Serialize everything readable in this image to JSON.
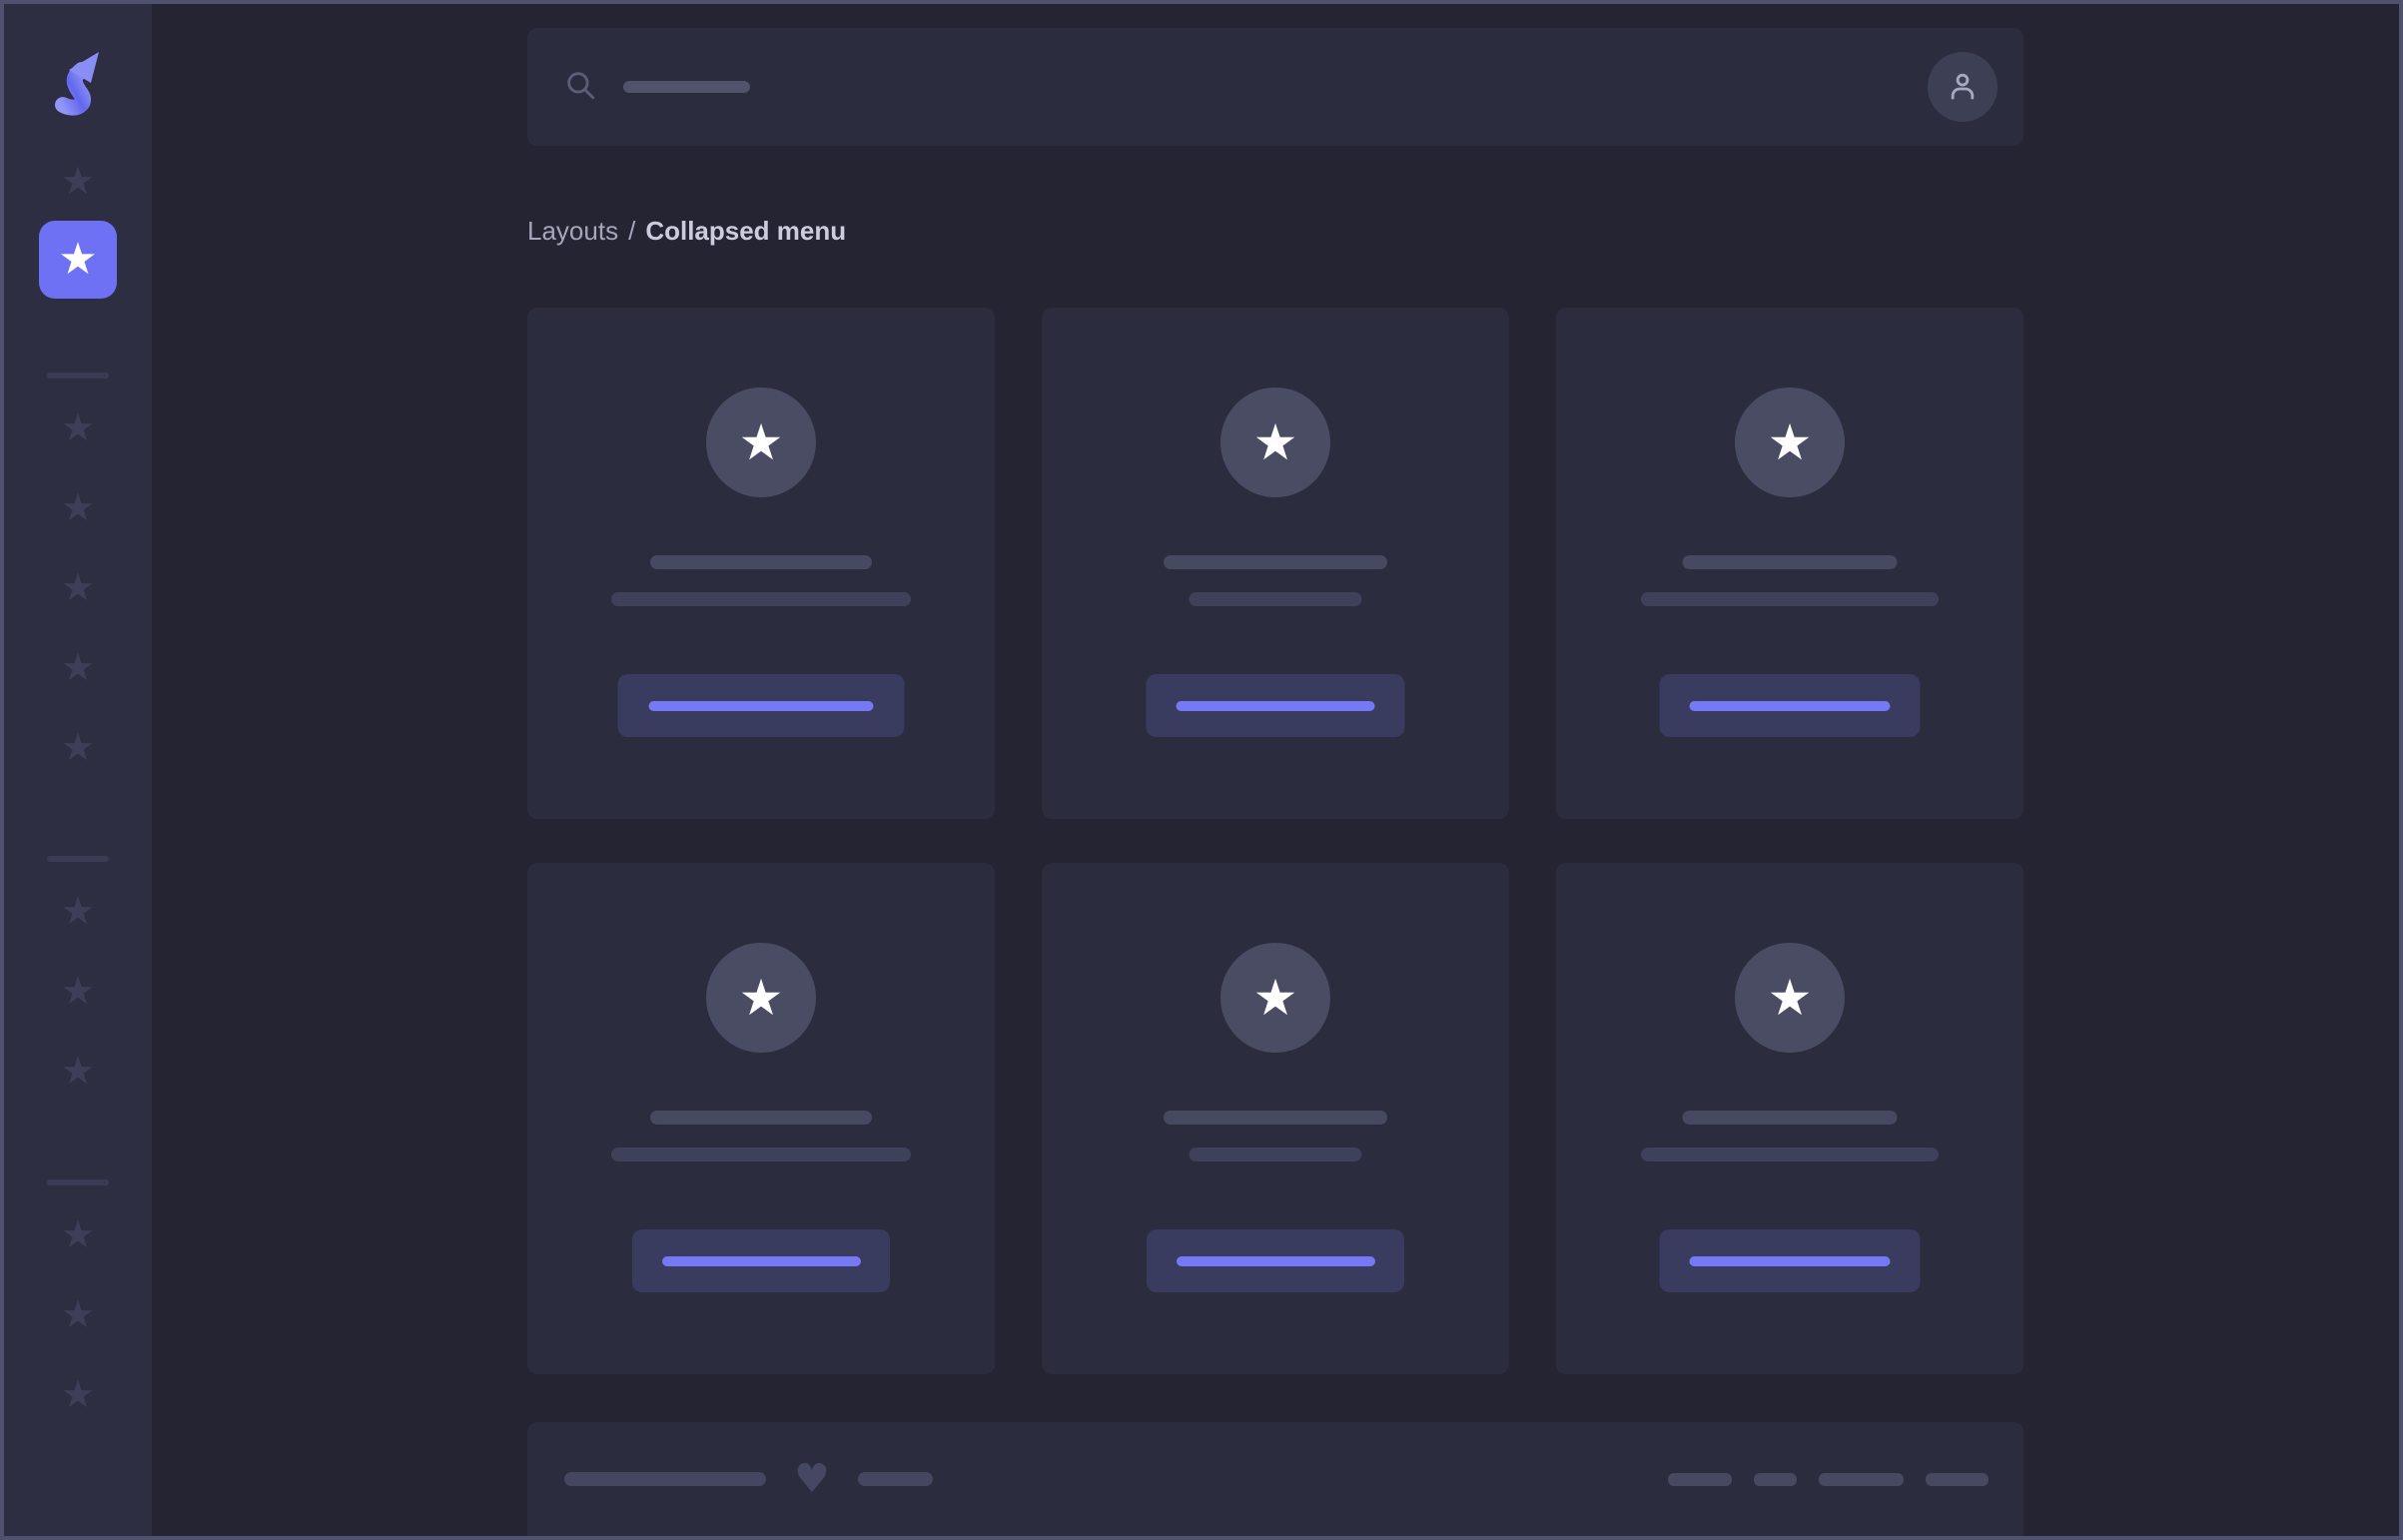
{
  "colors": {
    "accent": "#6e71f4",
    "accent_bright": "#7679f3",
    "page_border": "#50516f",
    "content_bg": "#242433",
    "sidebar_bg": "#2d2e41",
    "panel_bg": "#2b2c3e",
    "button_bg": "#3a3c5f",
    "avatar_circle_bg": "#4a4c64"
  },
  "icons": {
    "star": "★",
    "heart": "♥",
    "logo": "logo-s-arrow-icon",
    "search": "search-icon",
    "user": "user-icon"
  },
  "header": {
    "search": {
      "placeholder_line_width": 127
    }
  },
  "breadcrumb": {
    "section": "Layouts",
    "separator": "/",
    "current": "Collapsed menu"
  },
  "sidebar": {
    "groups": [
      {
        "divider": false,
        "items": [
          {
            "active": false
          },
          {
            "active": true
          }
        ]
      },
      {
        "divider": true,
        "items": [
          {
            "active": false
          },
          {
            "active": false
          },
          {
            "active": false
          },
          {
            "active": false
          },
          {
            "active": false
          }
        ]
      },
      {
        "divider": true,
        "items": [
          {
            "active": false
          },
          {
            "active": false
          },
          {
            "active": false
          }
        ]
      },
      {
        "divider": true,
        "items": [
          {
            "active": false
          },
          {
            "active": false
          },
          {
            "active": false
          }
        ]
      }
    ]
  },
  "cards": [
    {
      "title_line_width": 222,
      "text_line_width": 300,
      "button_width": 287,
      "button_line_width": 225
    },
    {
      "title_line_width": 224,
      "text_line_width": 173,
      "button_width": 259,
      "button_line_width": 199
    },
    {
      "title_line_width": 215,
      "text_line_width": 298,
      "button_width": 261,
      "button_line_width": 201
    },
    {
      "title_line_width": 222,
      "text_line_width": 300,
      "button_width": 258,
      "button_line_width": 199
    },
    {
      "title_line_width": 224,
      "text_line_width": 173,
      "button_width": 258,
      "button_line_width": 199
    },
    {
      "title_line_width": 215,
      "text_line_width": 298,
      "button_width": 261,
      "button_line_width": 201
    }
  ],
  "footer": {
    "left_line_widths": [
      202,
      75
    ],
    "right_pill_widths": [
      64,
      43,
      85,
      63
    ]
  }
}
